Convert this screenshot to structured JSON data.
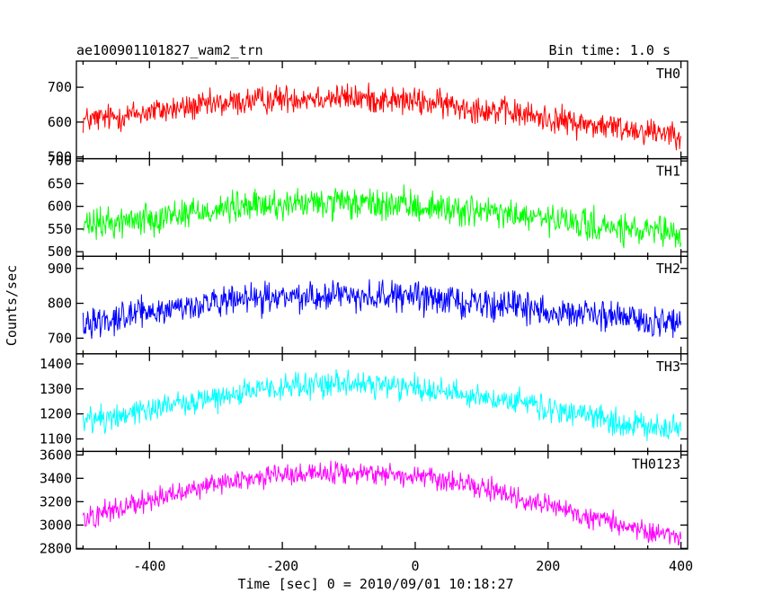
{
  "chart_data": {
    "type": "line",
    "title_left": "ae100901101827_wam2_trn",
    "title_right": "Bin time: 1.0 s",
    "xlabel": "Time [sec] 0 = 2010/09/01 10:18:27",
    "ylabel": "Counts/sec",
    "xlim": [
      -510,
      410
    ],
    "xticks": [
      -400,
      -200,
      0,
      200,
      400
    ],
    "bin_time_s": 1.0,
    "grid": false,
    "panels": [
      {
        "name": "TH0",
        "color": "#ff0000",
        "ylim": [
          495,
          775
        ],
        "yticks": [
          500,
          600,
          700
        ],
        "trend": {
          "x": [
            -500,
            -450,
            -400,
            -350,
            -300,
            -250,
            -200,
            -150,
            -100,
            -50,
            0,
            50,
            100,
            150,
            200,
            250,
            300,
            350,
            400
          ],
          "y": [
            605,
            615,
            630,
            640,
            650,
            660,
            668,
            672,
            670,
            665,
            658,
            650,
            638,
            625,
            610,
            595,
            585,
            575,
            570
          ]
        },
        "noise": 30
      },
      {
        "name": "TH1",
        "color": "#00ff00",
        "ylim": [
          490,
          705
        ],
        "yticks": [
          500,
          550,
          600,
          650,
          700
        ],
        "trend": {
          "x": [
            -500,
            -450,
            -400,
            -350,
            -300,
            -250,
            -200,
            -150,
            -100,
            -50,
            0,
            50,
            100,
            150,
            200,
            250,
            300,
            350,
            400
          ],
          "y": [
            555,
            565,
            575,
            585,
            593,
            600,
            604,
            606,
            605,
            603,
            600,
            595,
            588,
            580,
            570,
            560,
            550,
            542,
            537
          ]
        },
        "noise": 26
      },
      {
        "name": "TH2",
        "color": "#0000ff",
        "ylim": [
          655,
          935
        ],
        "yticks": [
          700,
          800,
          900
        ],
        "trend": {
          "x": [
            -500,
            -450,
            -400,
            -350,
            -300,
            -250,
            -200,
            -150,
            -100,
            -50,
            0,
            50,
            100,
            150,
            200,
            250,
            300,
            350,
            400
          ],
          "y": [
            745,
            760,
            775,
            790,
            800,
            810,
            818,
            822,
            824,
            822,
            818,
            810,
            800,
            790,
            780,
            770,
            760,
            750,
            740
          ]
        },
        "noise": 32
      },
      {
        "name": "TH3",
        "color": "#00ffff",
        "ylim": [
          1050,
          1440
        ],
        "yticks": [
          1100,
          1200,
          1300,
          1400
        ],
        "trend": {
          "x": [
            -500,
            -450,
            -400,
            -350,
            -300,
            -250,
            -200,
            -150,
            -100,
            -50,
            0,
            50,
            100,
            150,
            200,
            250,
            300,
            350,
            400
          ],
          "y": [
            1170,
            1195,
            1220,
            1245,
            1268,
            1288,
            1305,
            1315,
            1318,
            1315,
            1305,
            1290,
            1270,
            1245,
            1220,
            1195,
            1170,
            1150,
            1135
          ]
        },
        "noise": 40
      },
      {
        "name": "TH0123",
        "color": "#ff00ff",
        "ylim": [
          2795,
          3630
        ],
        "yticks": [
          2800,
          3000,
          3200,
          3400,
          3600
        ],
        "trend": {
          "x": [
            -500,
            -450,
            -400,
            -350,
            -300,
            -250,
            -200,
            -150,
            -100,
            -50,
            0,
            50,
            100,
            150,
            200,
            250,
            300,
            350,
            400
          ],
          "y": [
            3060,
            3140,
            3220,
            3290,
            3350,
            3395,
            3430,
            3445,
            3450,
            3440,
            3415,
            3370,
            3310,
            3240,
            3160,
            3080,
            3010,
            2950,
            2910
          ]
        },
        "noise": 70
      }
    ]
  }
}
